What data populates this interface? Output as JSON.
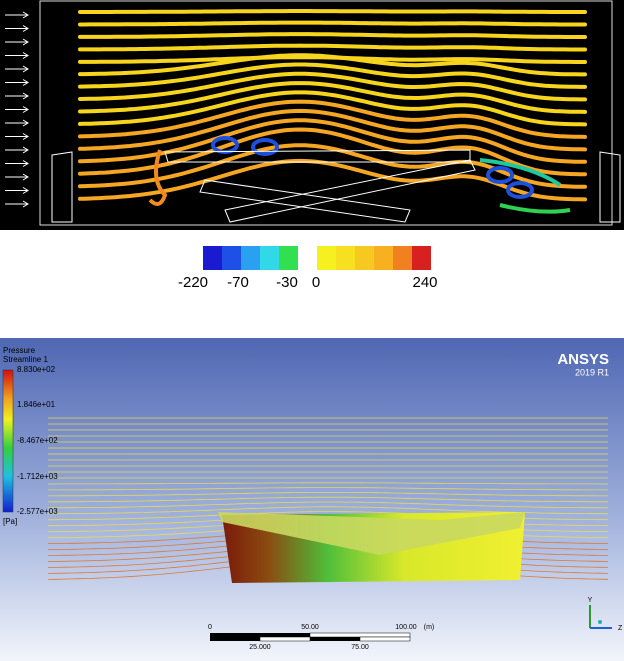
{
  "top_panel": {
    "colorbar_labels": [
      "-220",
      "-70",
      "-30",
      "0",
      "240"
    ]
  },
  "bottom_panel": {
    "legend": {
      "title": "Pressure",
      "subtitle": "Streamline 1",
      "labels": [
        "8.830e+02",
        "1.846e+01",
        "-8.467e+02",
        "-1.712e+03",
        "-2.577e+03"
      ],
      "unit": "[Pa]"
    },
    "brand": {
      "name": "ANSYS",
      "version": "2019 R1"
    },
    "scale_bar": {
      "top_labels": [
        "0",
        "50.00",
        "100.00",
        "(m)"
      ],
      "bottom_labels": [
        "25.000",
        "75.00"
      ]
    },
    "axes": {
      "y": "Y",
      "z": "Z"
    }
  }
}
